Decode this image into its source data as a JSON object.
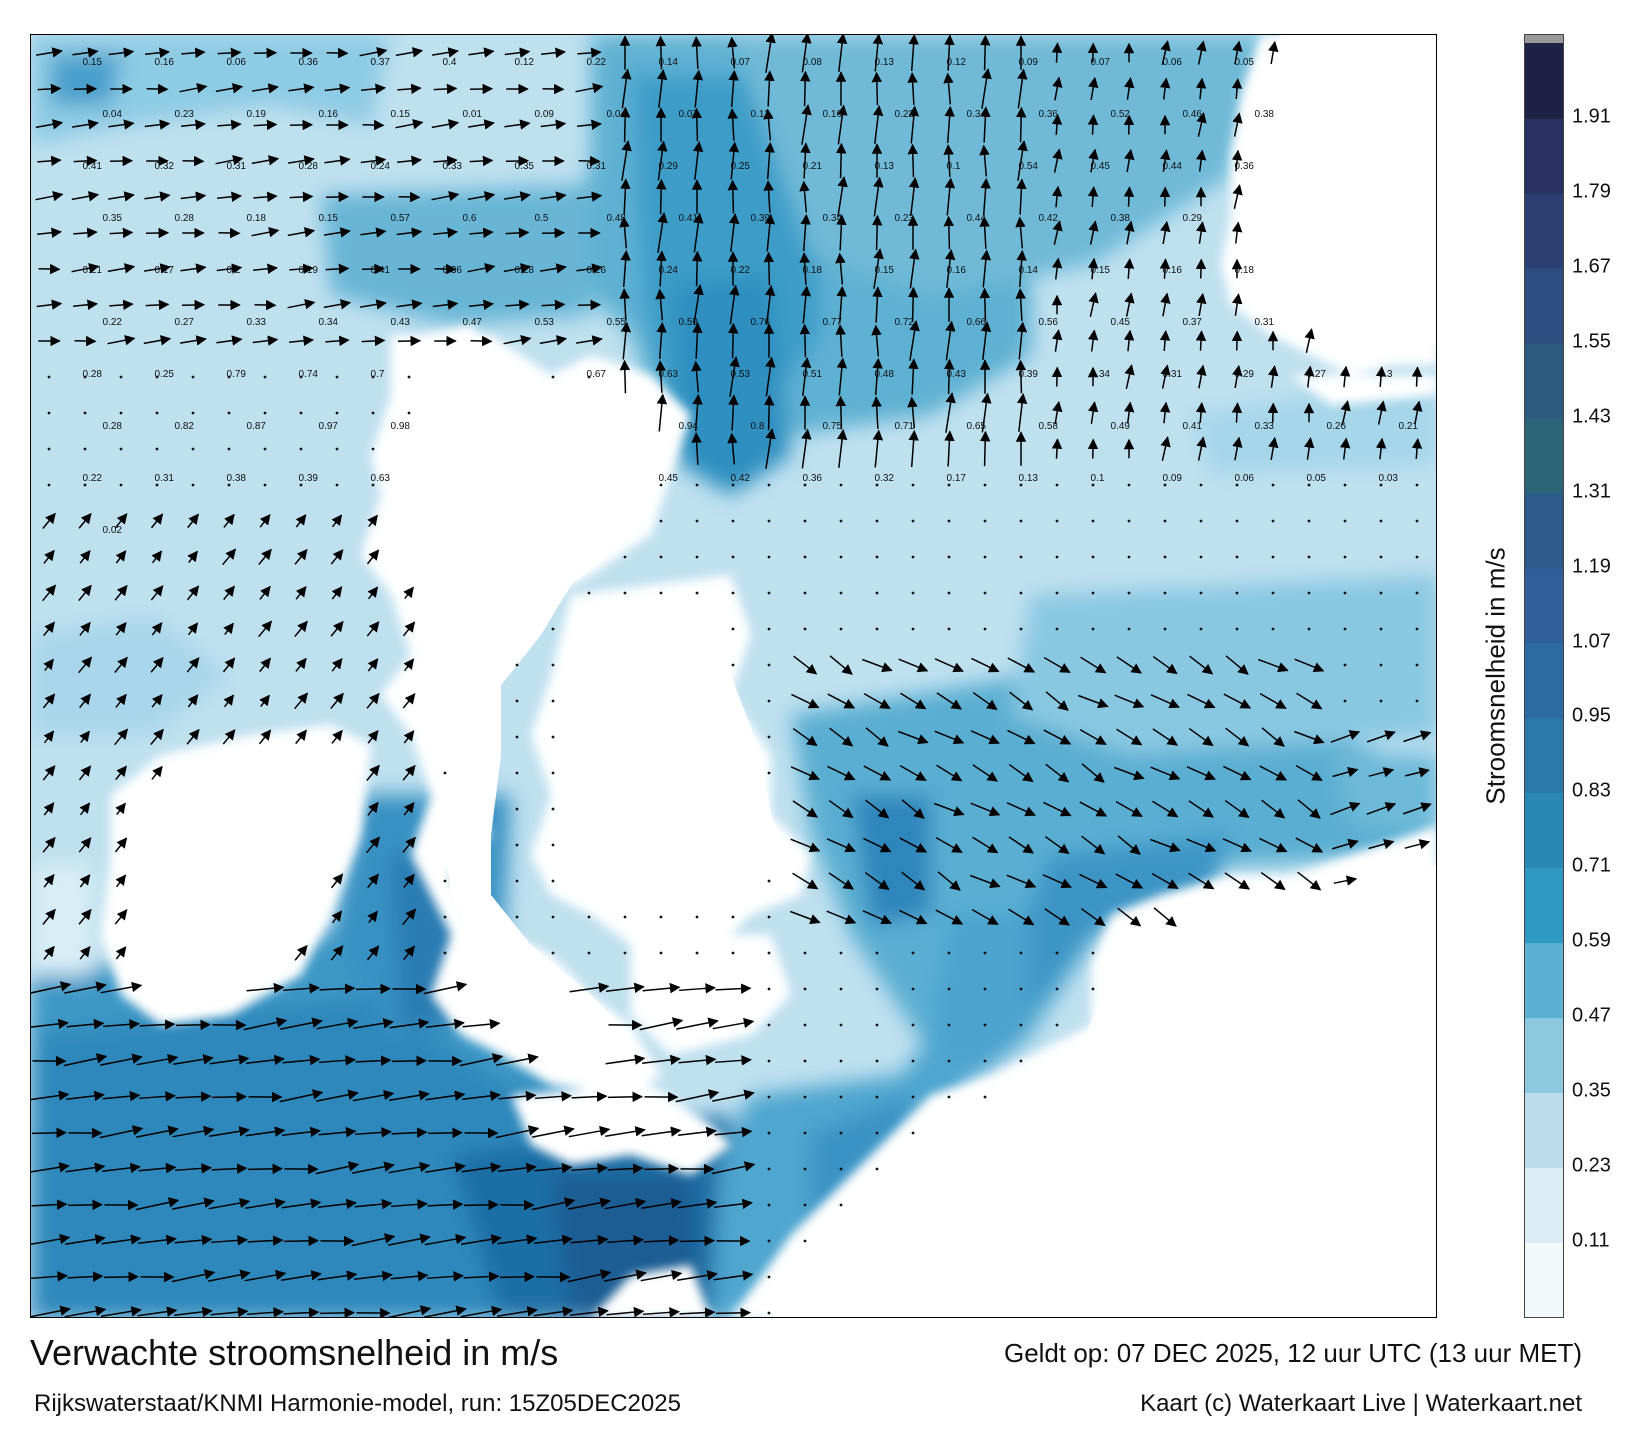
{
  "colorbar": {
    "title": "Stroomsnelheid in m/s",
    "tick_labels": [
      "0.11",
      "0.23",
      "0.35",
      "0.47",
      "0.59",
      "0.71",
      "0.83",
      "0.95",
      "1.07",
      "1.19",
      "1.31",
      "1.43",
      "1.55",
      "1.67",
      "1.79",
      "1.91"
    ],
    "colors": [
      "#f3f9fb",
      "#dcecf4",
      "#bcdcec",
      "#8ec8df",
      "#5cb0d1",
      "#2f98c3",
      "#2a88b5",
      "#2b79a8",
      "#2e6aa2",
      "#2f5e99",
      "#2e5a8a",
      "#2c6478",
      "#2c5a7e",
      "#2c4e80",
      "#2b3f72",
      "#283161",
      "#1d2244"
    ],
    "top_color": "#999999"
  },
  "footer": {
    "title": "Verwachte stroomsnelheid in m/s",
    "subtitle": "Rijkswaterstaat/KNMI Harmonie-model, run: 15Z05DEC2025",
    "valid": "Geldt op: 07 DEC 2025, 12 uur UTC (13 uur MET)",
    "credit": "Kaart (c) Waterkaart Live | Waterkaart.net"
  },
  "map": {
    "speed_labels": [
      {
        "text": "0.15"
      },
      {
        "text": "0.16"
      },
      {
        "text": "0.06"
      },
      {
        "text": "0.36"
      },
      {
        "text": "0.37"
      },
      {
        "text": "0.4"
      },
      {
        "text": "0.12"
      },
      {
        "text": "0.22"
      },
      {
        "text": "0.14"
      },
      {
        "text": "0.07"
      },
      {
        "text": "0.08"
      },
      {
        "text": "0.13"
      },
      {
        "text": "0.12"
      },
      {
        "text": "0.09"
      },
      {
        "text": "0.07"
      },
      {
        "text": "0.06"
      },
      {
        "text": "0.05"
      },
      {
        "text": "0.04"
      },
      {
        "text": "0.23"
      },
      {
        "text": "0.19"
      },
      {
        "text": "0.16"
      },
      {
        "text": "0.15"
      },
      {
        "text": "0.01"
      },
      {
        "text": "0.09"
      },
      {
        "text": "0.04"
      },
      {
        "text": "0.07"
      },
      {
        "text": "0.11"
      },
      {
        "text": "0.16"
      },
      {
        "text": "0.22"
      },
      {
        "text": "0.34"
      },
      {
        "text": "0.36"
      },
      {
        "text": "0.52"
      },
      {
        "text": "0.46"
      },
      {
        "text": "0.38"
      },
      {
        "text": "0.41"
      },
      {
        "text": "0.32"
      },
      {
        "text": "0.31"
      },
      {
        "text": "0.28"
      },
      {
        "text": "0.24"
      },
      {
        "text": "0.33"
      },
      {
        "text": "0.35"
      },
      {
        "text": "0.31"
      },
      {
        "text": "0.29"
      },
      {
        "text": "0.25"
      },
      {
        "text": "0.21"
      },
      {
        "text": "0.13"
      },
      {
        "text": "0.1"
      },
      {
        "text": "0.54"
      },
      {
        "text": "0.45"
      },
      {
        "text": "0.44"
      },
      {
        "text": "0.36"
      },
      {
        "text": "0.35"
      },
      {
        "text": "0.28"
      },
      {
        "text": "0.18"
      },
      {
        "text": "0.15"
      },
      {
        "text": "0.57"
      },
      {
        "text": "0.6"
      },
      {
        "text": "0.5"
      },
      {
        "text": "0.48"
      },
      {
        "text": "0.41"
      },
      {
        "text": "0.39"
      },
      {
        "text": "0.34"
      },
      {
        "text": "0.23"
      },
      {
        "text": "0.44"
      },
      {
        "text": "0.42"
      },
      {
        "text": "0.38"
      },
      {
        "text": "0.29"
      },
      {
        "text": "0.21"
      },
      {
        "text": "0.17"
      },
      {
        "text": "0.2"
      },
      {
        "text": "0.19"
      },
      {
        "text": "0.41"
      },
      {
        "text": "0.36"
      },
      {
        "text": "0.28"
      },
      {
        "text": "0.26"
      },
      {
        "text": "0.24"
      },
      {
        "text": "0.22"
      },
      {
        "text": "0.18"
      },
      {
        "text": "0.15"
      },
      {
        "text": "0.16"
      },
      {
        "text": "0.14"
      },
      {
        "text": "0.15"
      },
      {
        "text": "0.16"
      },
      {
        "text": "0.18"
      },
      {
        "text": "0.22"
      },
      {
        "text": "0.27"
      },
      {
        "text": "0.33"
      },
      {
        "text": "0.34"
      },
      {
        "text": "0.43"
      },
      {
        "text": "0.47"
      },
      {
        "text": "0.53"
      },
      {
        "text": "0.55"
      },
      {
        "text": "0.59"
      },
      {
        "text": "0.76"
      },
      {
        "text": "0.77"
      },
      {
        "text": "0.72"
      },
      {
        "text": "0.66"
      },
      {
        "text": "0.56"
      },
      {
        "text": "0.45"
      },
      {
        "text": "0.37"
      },
      {
        "text": "0.31"
      },
      {
        "text": "0.28"
      },
      {
        "text": "0.25"
      },
      {
        "text": "0.79"
      },
      {
        "text": "0.74"
      },
      {
        "text": "0.7"
      },
      {
        "text": "0.67"
      },
      {
        "text": "0.63"
      },
      {
        "text": "0.53"
      },
      {
        "text": "0.51"
      },
      {
        "text": "0.48"
      },
      {
        "text": "0.43"
      },
      {
        "text": "0.39"
      },
      {
        "text": "0.34"
      },
      {
        "text": "0.31"
      },
      {
        "text": "0.29"
      },
      {
        "text": "0.27"
      },
      {
        "text": "0.3"
      },
      {
        "text": "0.28"
      },
      {
        "text": "0.82"
      },
      {
        "text": "0.87"
      },
      {
        "text": "0.97"
      },
      {
        "text": "0.98"
      },
      {
        "text": "0.94"
      },
      {
        "text": "0.8"
      },
      {
        "text": "0.75"
      },
      {
        "text": "0.71"
      },
      {
        "text": "0.65"
      },
      {
        "text": "0.58"
      },
      {
        "text": "0.49"
      },
      {
        "text": "0.41"
      },
      {
        "text": "0.33"
      },
      {
        "text": "0.26"
      },
      {
        "text": "0.21"
      },
      {
        "text": "0.22"
      },
      {
        "text": "0.31"
      },
      {
        "text": "0.38"
      },
      {
        "text": "0.39"
      },
      {
        "text": "0.63"
      },
      {
        "text": "0.45"
      },
      {
        "text": "0.42"
      },
      {
        "text": "0.36"
      },
      {
        "text": "0.32"
      },
      {
        "text": "0.17"
      },
      {
        "text": "0.13"
      },
      {
        "text": "0.1"
      },
      {
        "text": "0.09"
      },
      {
        "text": "0.06"
      },
      {
        "text": "0.05"
      },
      {
        "text": "0.03"
      },
      {
        "text": "0.02"
      }
    ],
    "arrow_legend_note": ""
  }
}
